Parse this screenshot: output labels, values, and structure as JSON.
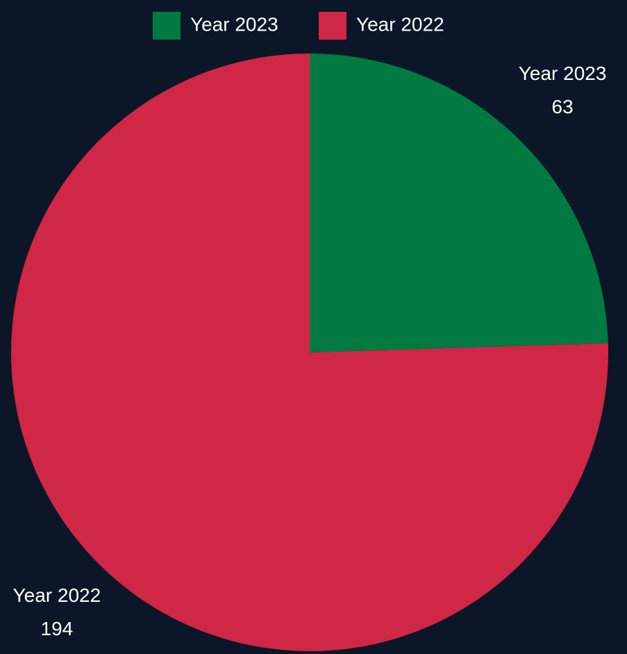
{
  "chart_data": {
    "type": "pie",
    "categories": [
      "Year 2023",
      "Year 2022"
    ],
    "values": [
      63,
      194
    ],
    "colors": [
      "#007a40",
      "#cf2745"
    ],
    "legend": "top"
  }
}
